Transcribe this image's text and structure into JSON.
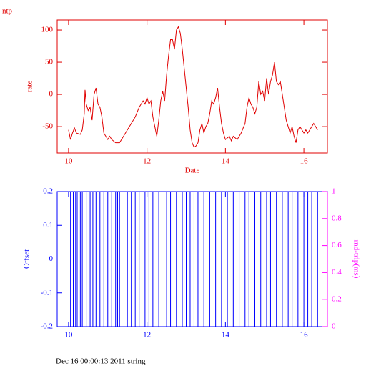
{
  "chart_data": [
    {
      "type": "line",
      "title": "ntp",
      "xlabel": "Date",
      "ylabel": "rate",
      "color": "#e00000",
      "xlim": [
        9.71,
        16.6
      ],
      "xticks": [
        10,
        12,
        14,
        16
      ],
      "ylim": [
        -91,
        115.6
      ],
      "yticks": [
        -50,
        0,
        50,
        100
      ],
      "x": [
        10.0,
        10.05,
        10.1,
        10.15,
        10.2,
        10.3,
        10.35,
        10.4,
        10.42,
        10.45,
        10.5,
        10.55,
        10.6,
        10.65,
        10.7,
        10.75,
        10.8,
        10.85,
        10.9,
        11.0,
        11.05,
        11.1,
        11.2,
        11.3,
        11.4,
        11.5,
        11.6,
        11.7,
        11.8,
        11.9,
        11.95,
        12.0,
        12.05,
        12.1,
        12.15,
        12.2,
        12.25,
        12.3,
        12.35,
        12.4,
        12.45,
        12.5,
        12.55,
        12.6,
        12.65,
        12.7,
        12.75,
        12.8,
        12.85,
        12.9,
        12.95,
        13.0,
        13.05,
        13.1,
        13.15,
        13.2,
        13.25,
        13.3,
        13.35,
        13.4,
        13.45,
        13.5,
        13.55,
        13.6,
        13.65,
        13.7,
        13.75,
        13.8,
        13.85,
        13.9,
        13.95,
        14.0,
        14.1,
        14.15,
        14.2,
        14.3,
        14.4,
        14.5,
        14.55,
        14.6,
        14.65,
        14.7,
        14.75,
        14.8,
        14.85,
        14.9,
        14.95,
        15.0,
        15.05,
        15.1,
        15.15,
        15.2,
        15.25,
        15.3,
        15.35,
        15.4,
        15.45,
        15.5,
        15.55,
        15.6,
        15.65,
        15.7,
        15.75,
        15.8,
        15.85,
        15.9,
        16.0,
        16.05,
        16.1,
        16.15,
        16.2,
        16.25,
        16.3,
        16.35
      ],
      "values": [
        -55,
        -70,
        -60,
        -52,
        -60,
        -62,
        -55,
        -30,
        7,
        -15,
        -25,
        -20,
        -40,
        0,
        10,
        -15,
        -20,
        -35,
        -60,
        -70,
        -65,
        -70,
        -75,
        -75,
        -65,
        -55,
        -45,
        -35,
        -20,
        -10,
        -15,
        -5,
        -15,
        -10,
        -35,
        -50,
        -65,
        -40,
        -10,
        5,
        -10,
        30,
        60,
        85,
        85,
        70,
        100,
        105,
        95,
        70,
        40,
        10,
        -20,
        -55,
        -75,
        -82,
        -80,
        -75,
        -55,
        -45,
        -60,
        -50,
        -45,
        -30,
        -10,
        -15,
        -5,
        10,
        -20,
        -45,
        -60,
        -70,
        -65,
        -72,
        -65,
        -70,
        -60,
        -45,
        -20,
        -5,
        -15,
        -20,
        -30,
        -20,
        20,
        0,
        5,
        -10,
        25,
        0,
        20,
        30,
        50,
        20,
        15,
        20,
        0,
        -20,
        -40,
        -50,
        -60,
        -50,
        -65,
        -75,
        -55,
        -50,
        -60,
        -55,
        -60,
        -55,
        -50,
        -45,
        -50,
        -55
      ]
    },
    {
      "type": "line",
      "ylabel": "Offset",
      "y2label": "rnd-trip(ms)",
      "color": "#0000ff",
      "y2_color": "#ff00ff",
      "xlim": [
        9.71,
        16.6
      ],
      "xticks": [
        10,
        12,
        14,
        16
      ],
      "ylim": [
        -0.2,
        0.2
      ],
      "yticks": [
        -0.2,
        -0.1,
        0,
        0.1,
        0.2
      ],
      "y2lim": [
        0,
        1
      ],
      "y2ticks": [
        0,
        0.2,
        0.4,
        0.6,
        0.8,
        1
      ],
      "x": [
        10.05,
        10.05,
        10.12,
        10.12,
        10.18,
        10.18,
        10.22,
        10.22,
        10.3,
        10.3,
        10.35,
        10.35,
        10.45,
        10.45,
        10.55,
        10.55,
        10.62,
        10.62,
        10.7,
        10.7,
        10.8,
        10.8,
        10.9,
        10.9,
        11.0,
        11.0,
        11.1,
        11.1,
        11.2,
        11.2,
        11.25,
        11.25,
        11.3,
        11.3,
        11.5,
        11.5,
        11.6,
        11.6,
        11.7,
        11.7,
        11.8,
        11.8,
        11.95,
        11.95,
        12.05,
        12.05,
        12.15,
        12.15,
        12.3,
        12.3,
        12.5,
        12.5,
        12.6,
        12.6,
        12.75,
        12.75,
        12.9,
        12.9,
        13.0,
        13.0,
        13.1,
        13.1,
        13.2,
        13.2,
        13.3,
        13.3,
        13.45,
        13.45,
        13.6,
        13.6,
        13.75,
        13.75,
        13.9,
        13.9,
        14.05,
        14.05,
        14.2,
        14.2,
        14.35,
        14.35,
        14.5,
        14.5,
        14.6,
        14.6,
        14.75,
        14.75,
        14.9,
        14.9,
        15.05,
        15.05,
        15.15,
        15.15,
        15.3,
        15.3,
        15.45,
        15.45,
        15.6,
        15.6,
        15.7,
        15.7,
        15.85,
        15.85,
        16.0,
        16.0,
        16.1,
        16.1,
        16.2,
        16.2,
        16.35,
        16.35
      ],
      "values": [
        -0.2,
        0.2,
        0.2,
        -0.2,
        -0.2,
        0.2,
        0.2,
        -0.2,
        -0.2,
        0.2,
        0.2,
        -0.2,
        -0.2,
        0.2,
        0.2,
        -0.2,
        -0.2,
        0.2,
        0.2,
        -0.2,
        -0.2,
        0.2,
        0.2,
        -0.2,
        -0.2,
        0.2,
        0.2,
        -0.2,
        -0.2,
        0.2,
        0.2,
        -0.2,
        -0.2,
        0.2,
        0.2,
        -0.2,
        -0.2,
        0.2,
        0.2,
        -0.2,
        -0.2,
        0.2,
        0.2,
        -0.2,
        -0.2,
        0.2,
        0.2,
        -0.2,
        -0.2,
        0.2,
        0.2,
        -0.2,
        -0.2,
        0.2,
        0.2,
        -0.2,
        -0.2,
        0.2,
        0.2,
        -0.2,
        -0.2,
        0.2,
        0.2,
        -0.2,
        -0.2,
        0.2,
        0.2,
        -0.2,
        -0.2,
        0.2,
        0.2,
        -0.2,
        -0.2,
        0.2,
        0.2,
        -0.2,
        -0.2,
        0.2,
        0.2,
        -0.2,
        -0.2,
        0.2,
        0.2,
        -0.2,
        -0.2,
        0.2,
        0.2,
        -0.2,
        -0.2,
        0.2,
        0.2,
        -0.2,
        -0.2,
        0.2,
        0.2,
        -0.2,
        -0.2,
        0.2,
        0.2,
        -0.2,
        -0.2,
        0.2,
        0.2,
        -0.2,
        -0.2,
        0.2,
        0.2,
        -0.2,
        -0.2,
        0.2
      ]
    }
  ],
  "footer": "Dec 16 00:00:13 2011 string"
}
